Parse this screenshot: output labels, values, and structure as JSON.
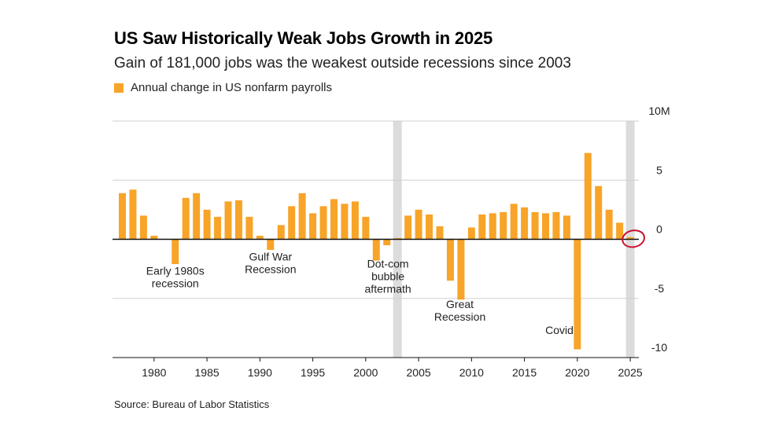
{
  "chart_data": {
    "type": "bar",
    "title": "US Saw Historically Weak Jobs Growth in 2025",
    "subtitle": "Gain of 181,000 jobs was the weakest outside recessions since 2003",
    "legend": [
      {
        "label": "Annual change in US nonfarm payrolls",
        "color": "#f7a428"
      }
    ],
    "source": "Source: Bureau of Labor Statistics",
    "unit": "millions of jobs",
    "x": [
      1977,
      1978,
      1979,
      1980,
      1981,
      1982,
      1983,
      1984,
      1985,
      1986,
      1987,
      1988,
      1989,
      1990,
      1991,
      1992,
      1993,
      1994,
      1995,
      1996,
      1997,
      1998,
      1999,
      2000,
      2001,
      2002,
      2003,
      2004,
      2005,
      2006,
      2007,
      2008,
      2009,
      2010,
      2011,
      2012,
      2013,
      2014,
      2015,
      2016,
      2017,
      2018,
      2019,
      2020,
      2021,
      2022,
      2023,
      2024,
      2025
    ],
    "values": [
      3.9,
      4.2,
      2.0,
      0.3,
      0.0,
      -2.1,
      3.5,
      3.9,
      2.5,
      1.9,
      3.2,
      3.3,
      1.9,
      0.3,
      -0.9,
      1.2,
      2.8,
      3.9,
      2.2,
      2.8,
      3.4,
      3.0,
      3.2,
      1.9,
      -1.8,
      -0.5,
      0.1,
      2.0,
      2.5,
      2.1,
      1.1,
      -3.5,
      -5.1,
      1.0,
      2.1,
      2.2,
      2.3,
      3.0,
      2.7,
      2.3,
      2.2,
      2.3,
      2.0,
      -9.3,
      7.3,
      4.5,
      2.5,
      1.4,
      0.181
    ],
    "ylim": [
      -10,
      10
    ],
    "yticks": [
      {
        "value": 10,
        "label": "10M"
      },
      {
        "value": 5,
        "label": "5"
      },
      {
        "value": 0,
        "label": "0"
      },
      {
        "value": -5,
        "label": "-5"
      },
      {
        "value": -10,
        "label": "-10"
      }
    ],
    "xticks": [
      1980,
      1985,
      1990,
      1995,
      2000,
      2005,
      2010,
      2015,
      2020,
      2025
    ],
    "recession_bands": [
      2003,
      2025
    ],
    "annotations": [
      {
        "lines": [
          "Early 1980s",
          "recession"
        ],
        "x": 1982.0,
        "y": -3.0
      },
      {
        "lines": [
          "Gulf War",
          "Recession"
        ],
        "x": 1991.0,
        "y": -1.8
      },
      {
        "lines": [
          "Dot-com",
          "bubble",
          "aftermath"
        ],
        "x": 2002.1,
        "y": -2.4
      },
      {
        "lines": [
          "Great",
          "Recession"
        ],
        "x": 2008.9,
        "y": -5.8
      },
      {
        "lines": [
          "Covid"
        ],
        "x": 2018.3,
        "y": -8.0
      }
    ],
    "highlight": {
      "x": 2025,
      "y": 0.181,
      "color": "#c8102e"
    },
    "grid": true,
    "bar_color": "#f7a428"
  }
}
